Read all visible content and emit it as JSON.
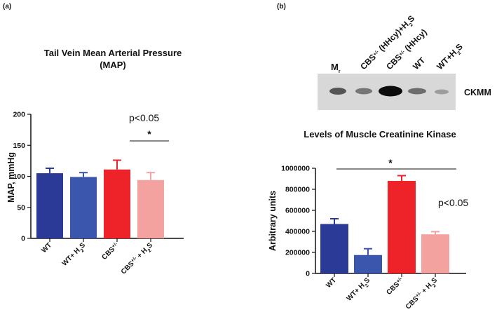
{
  "panel_a_label": "(a)",
  "panel_b_label": "(b)",
  "blot": {
    "lane_labels": [
      {
        "parts": [
          [
            "M",
            ""
          ],
          [
            "r",
            "sub"
          ]
        ]
      },
      {
        "parts": [
          [
            "CBS",
            ""
          ],
          [
            "+/-",
            "sup"
          ],
          [
            " (HHcy)+H",
            ""
          ],
          [
            "2",
            "sub"
          ],
          [
            "S",
            ""
          ]
        ]
      },
      {
        "parts": [
          [
            "CBS",
            ""
          ],
          [
            "+/-",
            "sup"
          ],
          [
            " (HHcy)",
            ""
          ]
        ]
      },
      {
        "parts": [
          [
            "WT",
            ""
          ]
        ]
      },
      {
        "parts": [
          [
            "WT+H",
            ""
          ],
          [
            "2",
            "sub"
          ],
          [
            "S",
            ""
          ]
        ]
      }
    ],
    "protein_label": "CKMM"
  },
  "chart_data": [
    {
      "type": "bar",
      "title": "Tail Vein Mean Arterial Pressure",
      "title_line2": "(MAP)",
      "xlabel": "",
      "ylabel": "MAP, mmHg",
      "ylim": [
        0,
        200
      ],
      "yticks": [
        0,
        50,
        100,
        150,
        200
      ],
      "ytick_labels": [
        "0",
        "50",
        "100",
        "150",
        "200"
      ],
      "categories": [
        "WT",
        "WT+ H2S",
        "CBS+/-",
        "CBS+/- + H2S"
      ],
      "category_rich": [
        [
          [
            "WT",
            ""
          ]
        ],
        [
          [
            "WT+ H",
            ""
          ],
          [
            "2",
            "sub"
          ],
          [
            "S",
            ""
          ]
        ],
        [
          [
            "CBS",
            ""
          ],
          [
            "+/-",
            "sup"
          ]
        ],
        [
          [
            "CBS",
            ""
          ],
          [
            "+/-",
            "sup"
          ],
          [
            " + H",
            ""
          ],
          [
            "2",
            "sub"
          ],
          [
            "S",
            ""
          ]
        ]
      ],
      "values": [
        105,
        99,
        111,
        94
      ],
      "errors": [
        8,
        7,
        15,
        12
      ],
      "colors": [
        "#2b3a97",
        "#3b57ad",
        "#ee2229",
        "#f4a2a0"
      ],
      "annotations": {
        "pvalue": "p<0.05",
        "star": "*"
      }
    },
    {
      "type": "bar",
      "title": "Levels of Muscle Creatinine Kinase",
      "xlabel": "",
      "ylabel": "Arbitrary units",
      "ylim": [
        0,
        1000000
      ],
      "yticks": [
        0,
        200000,
        400000,
        600000,
        800000,
        1000000
      ],
      "ytick_labels": [
        "0",
        "200000",
        "400000",
        "600000",
        "800000",
        "1000000"
      ],
      "categories": [
        "WT",
        "WT+ H2S",
        "CBS+/-",
        "CBS+/- + H2S"
      ],
      "category_rich": [
        [
          [
            "WT",
            ""
          ]
        ],
        [
          [
            "WT+ H",
            ""
          ],
          [
            "2",
            "sub"
          ],
          [
            "S",
            ""
          ]
        ],
        [
          [
            "CBS",
            ""
          ],
          [
            "+/-",
            "sup"
          ]
        ],
        [
          [
            "CBS",
            ""
          ],
          [
            "+/-",
            "sup"
          ],
          [
            " + H",
            ""
          ],
          [
            "2",
            "sub"
          ],
          [
            "S",
            ""
          ]
        ]
      ],
      "values": [
        470000,
        175000,
        880000,
        372000
      ],
      "errors": [
        50000,
        60000,
        50000,
        25000
      ],
      "colors": [
        "#2b3a97",
        "#3b57ad",
        "#ee2229",
        "#f4a2a0"
      ],
      "annotations": {
        "pvalue": "p<0.05",
        "star": "*"
      }
    }
  ]
}
